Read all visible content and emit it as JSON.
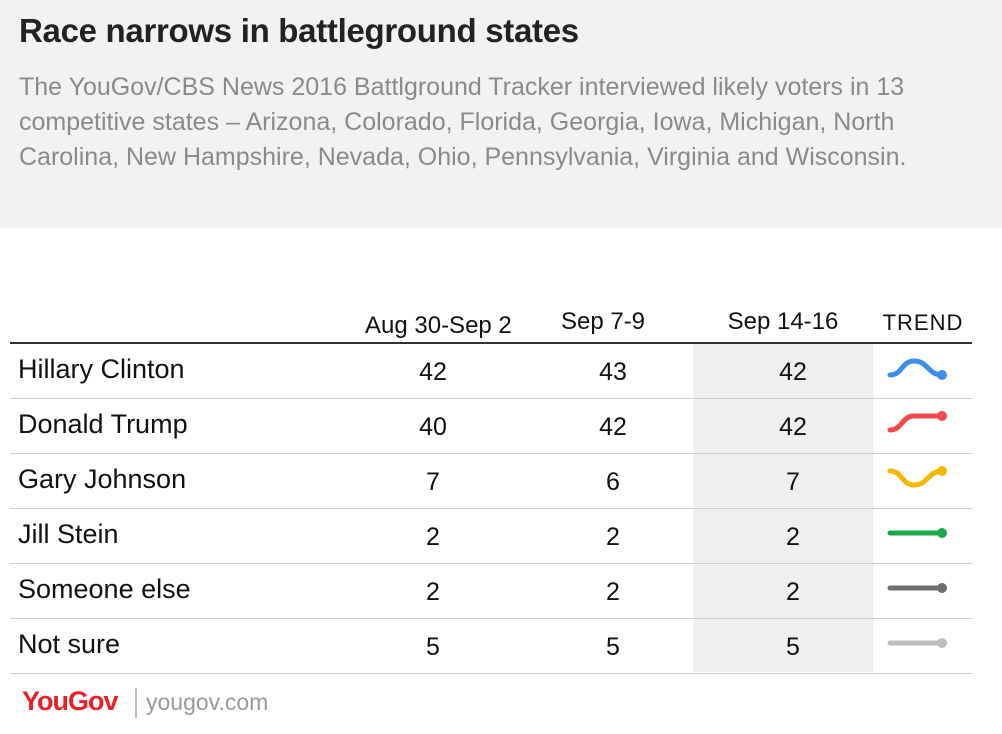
{
  "header": {
    "title": "Race narrows in battleground states",
    "subtitle": "The YouGov/CBS News 2016 Battlground Tracker interviewed likely voters in 13 competitive states – Arizona, Colorado, Florida, Georgia, Iowa, Michigan, North Carolina, New Hampshire, Nevada, Ohio, Pennsylvania, Virginia and Wisconsin."
  },
  "chart_data": {
    "type": "table",
    "columns": [
      "Aug 30-Sep 2",
      "Sep 7-9",
      "Sep 14-16"
    ],
    "trend_label": "TREND",
    "highlighted_column": "Sep 14-16",
    "rows": [
      {
        "name": "Hillary Clinton",
        "values": [
          42,
          43,
          42
        ],
        "color": "#3a8fe8"
      },
      {
        "name": "Donald Trump",
        "values": [
          40,
          42,
          42
        ],
        "color": "#f0474b"
      },
      {
        "name": "Gary Johnson",
        "values": [
          7,
          6,
          7
        ],
        "color": "#f5b800"
      },
      {
        "name": "Jill Stein",
        "values": [
          2,
          2,
          2
        ],
        "color": "#1aa84a"
      },
      {
        "name": "Someone else",
        "values": [
          2,
          2,
          2
        ],
        "color": "#6e6e6e"
      },
      {
        "name": "Not sure",
        "values": [
          5,
          5,
          5
        ],
        "color": "#bdbdbd"
      }
    ]
  },
  "footer": {
    "logo_text": "YouGov",
    "site": "yougov.com"
  }
}
